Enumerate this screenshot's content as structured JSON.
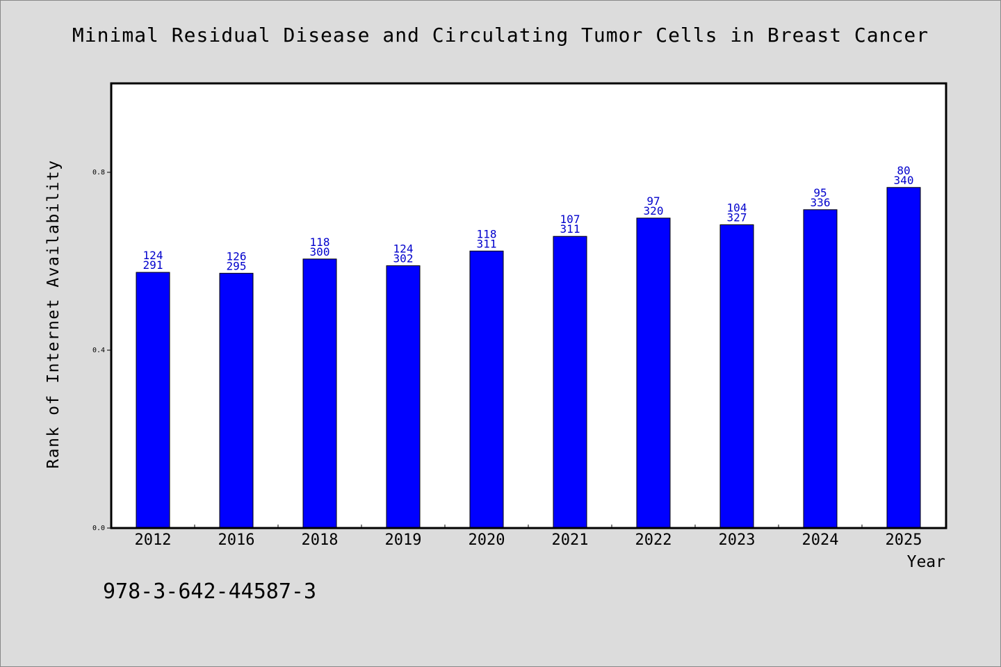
{
  "chart_data": {
    "type": "bar",
    "title": "Minimal Residual Disease and Circulating Tumor Cells in Breast Cancer",
    "xlabel": "Year",
    "ylabel": "Rank of Internet Availability",
    "categories": [
      "2012",
      "2016",
      "2018",
      "2019",
      "2020",
      "2021",
      "2022",
      "2023",
      "2024",
      "2025"
    ],
    "values": [
      0.575,
      0.573,
      0.605,
      0.59,
      0.623,
      0.656,
      0.697,
      0.682,
      0.716,
      0.766
    ],
    "bar_labels_top": [
      "124",
      "126",
      "118",
      "124",
      "118",
      "107",
      "97",
      "104",
      "95",
      "80"
    ],
    "bar_labels_bottom": [
      "291",
      "295",
      "300",
      "302",
      "311",
      "311",
      "320",
      "327",
      "336",
      "340"
    ],
    "yticks": [
      "0.0",
      "0.4",
      "0.8"
    ],
    "ylim": [
      0,
      1.0
    ],
    "grid": false,
    "legend": "none",
    "colors": {
      "bar": "#0000ff",
      "bar_label": "#0000cc",
      "background": "#dcdcdc",
      "plot": "#ffffff"
    }
  },
  "footer": {
    "isbn": "978-3-642-44587-3"
  }
}
